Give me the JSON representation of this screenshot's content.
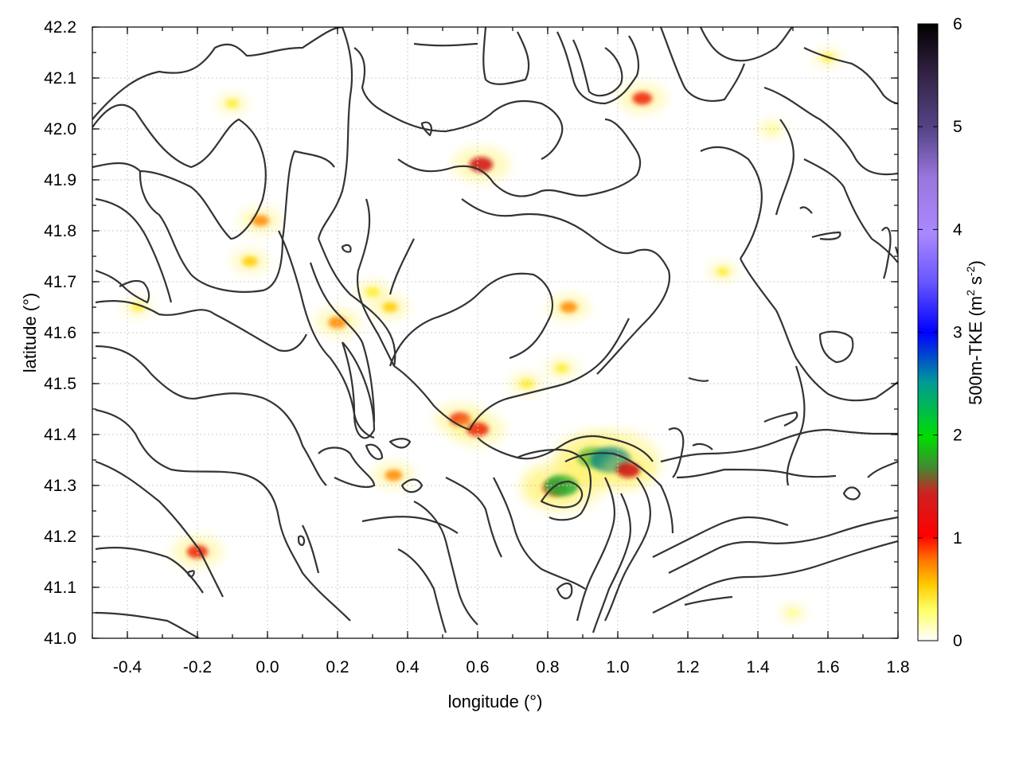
{
  "chart_data": {
    "type": "heatmap",
    "title": "",
    "xlabel": "longitude (°)",
    "ylabel": "latitude (°)",
    "xlim": [
      -0.5,
      1.8
    ],
    "ylim": [
      41.0,
      42.2
    ],
    "x_ticks": [
      "-0.4",
      "-0.2",
      "0.0",
      "0.2",
      "0.4",
      "0.6",
      "0.8",
      "1.0",
      "1.2",
      "1.4",
      "1.6",
      "1.8"
    ],
    "y_ticks": [
      "41.0",
      "41.1",
      "41.2",
      "41.3",
      "41.4",
      "41.5",
      "41.6",
      "41.7",
      "41.8",
      "41.9",
      "42.0",
      "42.1",
      "42.2"
    ],
    "grid": true,
    "colorbar": {
      "label_main": "500m-TKE (m",
      "label_sup1": "2",
      "label_mid": " s",
      "label_sup2": "-2",
      "label_end": ")",
      "range": [
        0,
        6
      ],
      "ticks": [
        "0",
        "1",
        "2",
        "3",
        "4",
        "5",
        "6"
      ],
      "palette": [
        "#ffffff",
        "#ffff00",
        "#ff9900",
        "#ff0000",
        "#cc1111",
        "#229922",
        "#00cc00",
        "#0066ff",
        "#0000ff",
        "#9966ff",
        "#bb99ff",
        "#554477",
        "#000000"
      ]
    },
    "hotspots": [
      {
        "lon": -0.2,
        "lat": 41.17,
        "tke": 0.9
      },
      {
        "lon": -0.37,
        "lat": 41.65,
        "tke": 0.2
      },
      {
        "lon": -0.1,
        "lat": 42.05,
        "tke": 0.25
      },
      {
        "lon": -0.02,
        "lat": 41.82,
        "tke": 0.6
      },
      {
        "lon": -0.05,
        "lat": 41.74,
        "tke": 0.45
      },
      {
        "lon": 0.3,
        "lat": 41.68,
        "tke": 0.35
      },
      {
        "lon": 0.35,
        "lat": 41.65,
        "tke": 0.45
      },
      {
        "lon": 0.2,
        "lat": 41.62,
        "tke": 0.7
      },
      {
        "lon": 0.55,
        "lat": 41.43,
        "tke": 0.9
      },
      {
        "lon": 0.6,
        "lat": 41.41,
        "tke": 1.0
      },
      {
        "lon": 0.61,
        "lat": 41.93,
        "tke": 1.1
      },
      {
        "lon": 0.36,
        "lat": 41.32,
        "tke": 0.6
      },
      {
        "lon": 0.86,
        "lat": 41.65,
        "tke": 0.6
      },
      {
        "lon": 0.84,
        "lat": 41.53,
        "tke": 0.3
      },
      {
        "lon": 0.74,
        "lat": 41.5,
        "tke": 0.35
      },
      {
        "lon": 0.82,
        "lat": 41.295,
        "tke": 1.2
      },
      {
        "lon": 0.84,
        "lat": 41.3,
        "tke": 1.9
      },
      {
        "lon": 0.93,
        "lat": 41.355,
        "tke": 1.8
      },
      {
        "lon": 0.98,
        "lat": 41.35,
        "tke": 2.4
      },
      {
        "lon": 1.03,
        "lat": 41.33,
        "tke": 1.1
      },
      {
        "lon": 1.07,
        "lat": 42.06,
        "tke": 0.8
      },
      {
        "lon": 1.3,
        "lat": 41.72,
        "tke": 0.2
      },
      {
        "lon": 1.44,
        "lat": 42.0,
        "tke": 0.15
      },
      {
        "lon": 1.6,
        "lat": 42.14,
        "tke": 0.2
      },
      {
        "lon": 1.5,
        "lat": 41.05,
        "tke": 0.1
      }
    ]
  }
}
